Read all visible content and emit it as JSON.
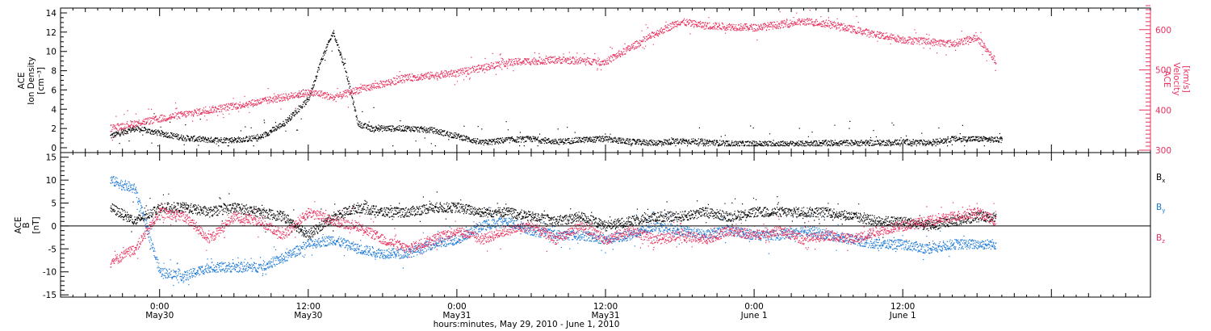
{
  "chart_data": [
    {
      "type": "scatter",
      "panel": "top",
      "ylabel_left": [
        "ACE",
        "Ion Density",
        "[cm⁻³]"
      ],
      "ylabel_right": [
        "ACE",
        "Velocity",
        "[km/s]"
      ],
      "ylim_left": [
        0,
        14.5
      ],
      "ylim_right": [
        300,
        660
      ],
      "yticks_left": [
        0,
        2,
        4,
        6,
        8,
        10,
        12,
        14
      ],
      "yticks_right": [
        300,
        400,
        500,
        600
      ],
      "colors": {
        "density": "#000000",
        "velocity": "#e8305e"
      },
      "series": [
        {
          "name": "Density",
          "axis": "left",
          "x_hours": [
            -4,
            -2,
            0,
            2,
            4,
            6,
            8,
            10,
            12,
            13,
            14,
            15,
            16,
            17,
            18,
            20,
            22,
            24,
            26,
            28,
            30,
            32,
            34,
            36,
            38,
            40,
            42,
            44,
            46,
            48,
            50,
            52,
            54,
            56,
            58,
            60,
            62,
            64,
            66,
            68
          ],
          "y": [
            1.2,
            2,
            1.5,
            1,
            0.8,
            0.8,
            1,
            2.5,
            5,
            9,
            12,
            8,
            2.5,
            2,
            2,
            2,
            1.8,
            1.2,
            0.5,
            0.8,
            0.9,
            0.6,
            0.8,
            0.9,
            0.6,
            0.5,
            0.7,
            0.6,
            0.4,
            0.4,
            0.4,
            0.4,
            0.5,
            0.5,
            0.5,
            0.6,
            0.5,
            0.9,
            0.9,
            0.8
          ]
        },
        {
          "name": "Velocity",
          "axis": "right",
          "x_hours": [
            -4,
            0,
            4,
            8,
            12,
            13,
            14,
            15,
            16,
            20,
            24,
            28,
            32,
            36,
            40,
            42,
            44,
            48,
            52,
            54,
            56,
            60,
            64,
            66,
            67.5
          ],
          "y": [
            355,
            378,
            400,
            420,
            443,
            440,
            430,
            440,
            450,
            480,
            492,
            518,
            525,
            520,
            590,
            620,
            610,
            605,
            620,
            615,
            600,
            575,
            565,
            580,
            520
          ]
        }
      ]
    },
    {
      "type": "line",
      "panel": "bottom",
      "ylabel": [
        "ACE",
        "B",
        "[nT]"
      ],
      "ylim": [
        -15.5,
        16
      ],
      "yticks": [
        -15,
        -10,
        -5,
        0,
        5,
        10,
        15
      ],
      "grid": false,
      "zero_line": true,
      "colors": {
        "Bx": "#000000",
        "By": "#1a78d6",
        "Bz": "#e8305e"
      },
      "series": [
        {
          "name": "Bx",
          "x_hours": [
            -4,
            -2,
            0,
            2,
            4,
            6,
            8,
            10,
            12,
            14,
            16,
            18,
            20,
            22,
            24,
            26,
            28,
            30,
            32,
            34,
            36,
            38,
            40,
            42,
            44,
            46,
            48,
            50,
            52,
            54,
            56,
            58,
            60,
            62,
            64,
            66,
            67.5
          ],
          "y": [
            4,
            1,
            4,
            4,
            3,
            4,
            3,
            2,
            -2,
            2,
            4,
            3,
            3,
            4,
            4,
            3,
            3,
            2,
            1,
            2,
            0,
            1,
            2,
            2,
            3,
            2,
            3,
            3,
            3,
            3,
            2,
            1,
            1,
            0,
            1,
            2,
            2
          ]
        },
        {
          "name": "By",
          "x_hours": [
            -4,
            -2,
            0,
            2,
            4,
            6,
            8,
            10,
            12,
            14,
            16,
            18,
            20,
            22,
            24,
            26,
            28,
            30,
            32,
            34,
            36,
            38,
            40,
            42,
            44,
            46,
            48,
            50,
            52,
            54,
            56,
            58,
            60,
            62,
            64,
            66,
            67.5
          ],
          "y": [
            10,
            8,
            -10,
            -11,
            -9,
            -9,
            -9,
            -7,
            -4,
            -3,
            -5,
            -6,
            -6,
            -4,
            -3,
            0,
            1,
            -1,
            -2,
            -2,
            -3,
            -2,
            0,
            -1,
            -2,
            -1,
            -2,
            -2,
            -1,
            -2,
            -3,
            -4,
            -4,
            -5,
            -4,
            -4,
            -4
          ]
        },
        {
          "name": "Bz",
          "x_hours": [
            -4,
            -2,
            0,
            2,
            4,
            6,
            8,
            10,
            12,
            14,
            16,
            18,
            20,
            22,
            24,
            26,
            28,
            30,
            32,
            34,
            36,
            38,
            40,
            42,
            44,
            46,
            48,
            50,
            52,
            54,
            56,
            58,
            60,
            62,
            64,
            66,
            67.5
          ],
          "y": [
            -8,
            -5,
            3,
            2,
            -3,
            2,
            1,
            -2,
            3,
            1,
            0,
            -3,
            -5,
            -3,
            -1,
            -3,
            -1,
            0,
            -3,
            0,
            -3,
            -1,
            -3,
            -2,
            -3,
            -1,
            -2,
            -1,
            -3,
            -2,
            -3,
            -1,
            0,
            1,
            2,
            3,
            1
          ]
        }
      ]
    }
  ],
  "panel_labels": {
    "bx": "B",
    "bx_sub": "x",
    "by": "B",
    "by_sub": "y",
    "bz": "B",
    "bz_sub": "z"
  },
  "x_axis": {
    "range_hours": [
      -8,
      80
    ],
    "ticks": [
      {
        "h": 0,
        "time": "0:00",
        "date": "May30"
      },
      {
        "h": 12,
        "time": "12:00",
        "date": "May30"
      },
      {
        "h": 24,
        "time": "0:00",
        "date": "May31"
      },
      {
        "h": 36,
        "time": "12:00",
        "date": "May31"
      },
      {
        "h": 48,
        "time": "0:00",
        "date": "June 1"
      },
      {
        "h": 60,
        "time": "12:00",
        "date": "June 1"
      }
    ],
    "xlabel": "hours:minutes, May 29, 2010 - June  1, 2010"
  }
}
